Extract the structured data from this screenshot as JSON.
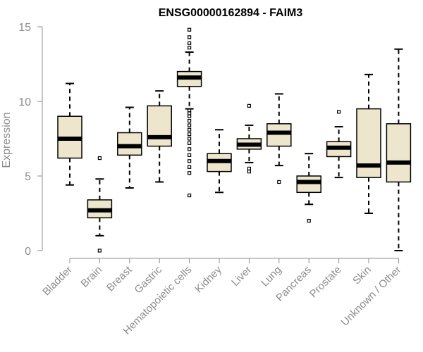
{
  "chart_data": {
    "type": "boxplot",
    "title": "ENSG00000162894 - FAIM3",
    "ylabel": "Expression",
    "ylim": [
      0,
      15
    ],
    "yticks": [
      "0",
      "5",
      "10",
      "15"
    ],
    "grid": false,
    "colors": {
      "box_fill": "#ede6cd",
      "box_stroke": "#000000",
      "median": "#000000",
      "axis": "#8c8c8c",
      "text": "#8c8c8c"
    },
    "categories": [
      "Bladder",
      "Brain",
      "Breast",
      "Gastric",
      "Hematopoietic cells",
      "Kidney",
      "Liver",
      "Lung",
      "Pancreas",
      "Prostate",
      "Skin",
      "Unknown / Other"
    ],
    "boxes": [
      {
        "category": "Bladder",
        "whisker_low": 4.4,
        "q1": 6.2,
        "median": 7.5,
        "q3": 9.0,
        "whisker_high": 11.2,
        "outliers": []
      },
      {
        "category": "Brain",
        "whisker_low": 1.0,
        "q1": 2.2,
        "median": 2.7,
        "q3": 3.4,
        "whisker_high": 4.8,
        "outliers": [
          0.0,
          6.2
        ]
      },
      {
        "category": "Breast",
        "whisker_low": 4.2,
        "q1": 6.4,
        "median": 7.0,
        "q3": 7.9,
        "whisker_high": 9.6,
        "outliers": []
      },
      {
        "category": "Gastric",
        "whisker_low": 4.6,
        "q1": 7.0,
        "median": 7.6,
        "q3": 9.7,
        "whisker_high": 10.7,
        "outliers": []
      },
      {
        "category": "Hematopoietic cells",
        "whisker_low": 9.5,
        "q1": 11.0,
        "median": 11.6,
        "q3": 12.0,
        "whisker_high": 13.3,
        "outliers": [
          3.7,
          5.2,
          5.6,
          6.0,
          6.4,
          6.8,
          7.2,
          7.5,
          7.8,
          8.1,
          8.4,
          8.7,
          9.0,
          9.2,
          9.4,
          13.6,
          13.9,
          14.3,
          14.8
        ]
      },
      {
        "category": "Kidney",
        "whisker_low": 3.9,
        "q1": 5.3,
        "median": 6.0,
        "q3": 6.5,
        "whisker_high": 8.1,
        "outliers": []
      },
      {
        "category": "Liver",
        "whisker_low": 5.9,
        "q1": 6.8,
        "median": 7.1,
        "q3": 7.5,
        "whisker_high": 8.4,
        "outliers": [
          5.3,
          5.5,
          9.7
        ]
      },
      {
        "category": "Lung",
        "whisker_low": 5.7,
        "q1": 7.0,
        "median": 7.9,
        "q3": 8.5,
        "whisker_high": 10.5,
        "outliers": [
          4.6
        ]
      },
      {
        "category": "Pancreas",
        "whisker_low": 3.1,
        "q1": 3.9,
        "median": 4.6,
        "q3": 5.0,
        "whisker_high": 6.5,
        "outliers": [
          2.0
        ]
      },
      {
        "category": "Prostate",
        "whisker_low": 4.9,
        "q1": 6.3,
        "median": 6.9,
        "q3": 7.3,
        "whisker_high": 8.3,
        "outliers": [
          9.3
        ]
      },
      {
        "category": "Skin",
        "whisker_low": 2.5,
        "q1": 4.9,
        "median": 5.7,
        "q3": 9.5,
        "whisker_high": 11.8,
        "outliers": []
      },
      {
        "category": "Unknown / Other",
        "whisker_low": 0.0,
        "q1": 4.6,
        "median": 5.9,
        "q3": 8.5,
        "whisker_high": 13.5,
        "outliers": []
      }
    ]
  }
}
